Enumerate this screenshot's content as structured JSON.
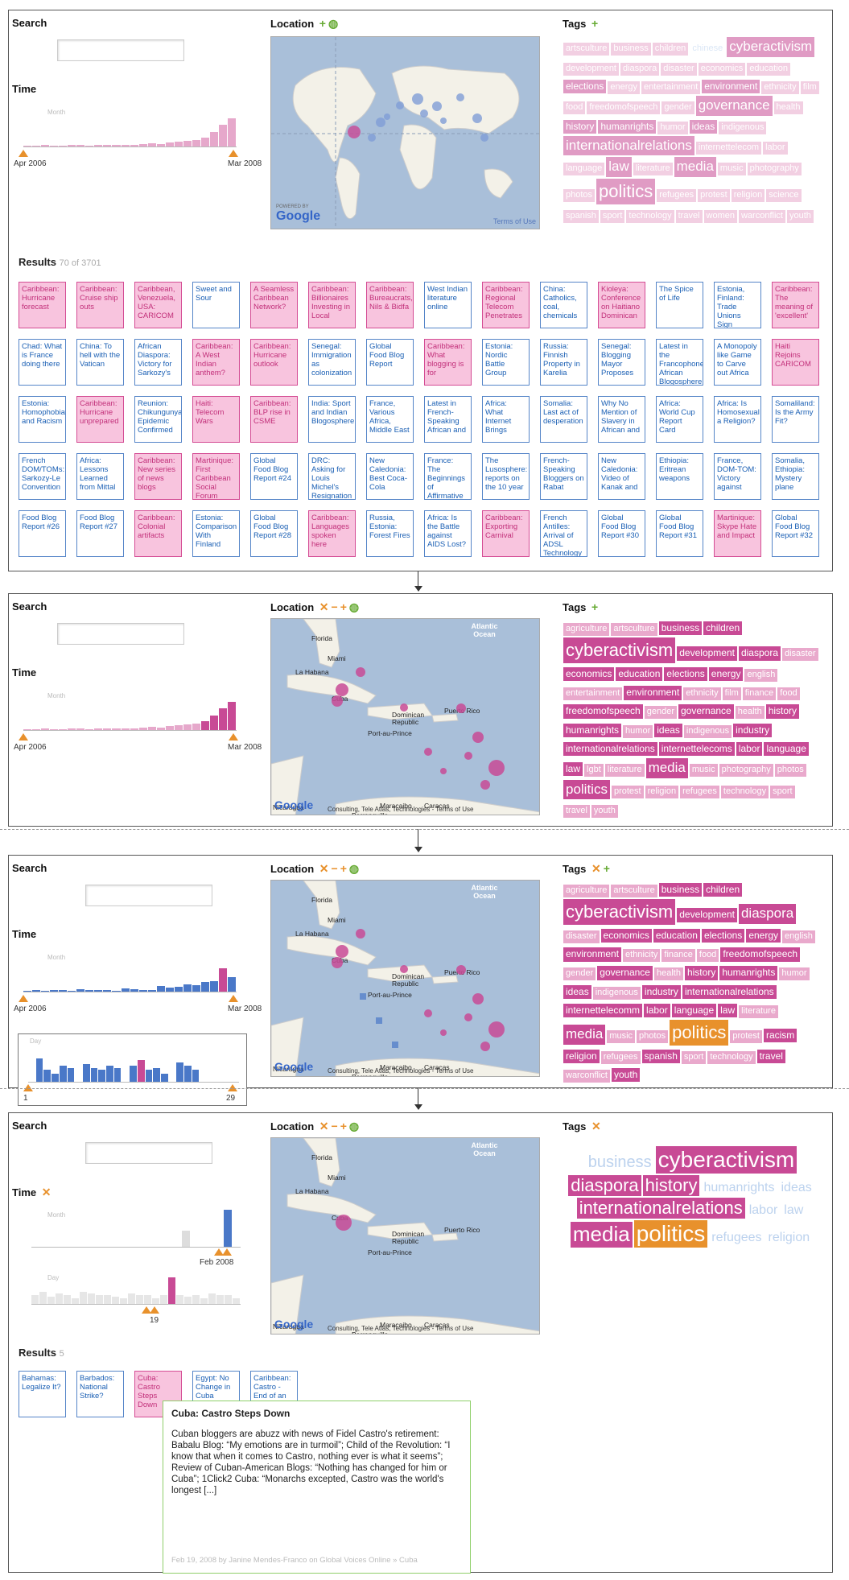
{
  "labels": {
    "search": "Search",
    "time": "Time",
    "location": "Location",
    "tags": "Tags",
    "results": "Results",
    "month": "Month",
    "day": "Day"
  },
  "panel1": {
    "time_start": "Apr 2006",
    "time_end": "Mar 2008",
    "results_count": "70 of 3701",
    "map_powered": "POWERED BY",
    "map_brand": "Google",
    "map_terms": "Terms of Use",
    "tags": [
      {
        "t": "artsculture",
        "s": "l"
      },
      {
        "t": "business",
        "s": "l"
      },
      {
        "t": "children",
        "s": "l"
      },
      {
        "t": "chinese",
        "s": "x"
      },
      {
        "t": "cyberactivism",
        "s": "xl"
      },
      {
        "t": "development",
        "s": "l"
      },
      {
        "t": "diaspora",
        "s": "l"
      },
      {
        "t": "disaster",
        "s": "l"
      },
      {
        "t": "economics",
        "s": "l"
      },
      {
        "t": "education",
        "s": "l"
      },
      {
        "t": "elections",
        "s": "m"
      },
      {
        "t": "energy",
        "s": "l"
      },
      {
        "t": "entertainment",
        "s": "l"
      },
      {
        "t": "environment",
        "s": "m"
      },
      {
        "t": "ethnicity",
        "s": "l"
      },
      {
        "t": "film",
        "s": "l"
      },
      {
        "t": "food",
        "s": "l"
      },
      {
        "t": "freedomofspeech",
        "s": "l"
      },
      {
        "t": "gender",
        "s": "l"
      },
      {
        "t": "governance",
        "s": "xl"
      },
      {
        "t": "health",
        "s": "l"
      },
      {
        "t": "history",
        "s": "m"
      },
      {
        "t": "humanrights",
        "s": "m"
      },
      {
        "t": "humor",
        "s": "l"
      },
      {
        "t": "ideas",
        "s": "m"
      },
      {
        "t": "indigenous",
        "s": "l"
      },
      {
        "t": "internationalrelations",
        "s": "xl"
      },
      {
        "t": "internettelecom",
        "s": "l"
      },
      {
        "t": "labor",
        "s": "l"
      },
      {
        "t": "language",
        "s": "l"
      },
      {
        "t": "law",
        "s": "xl"
      },
      {
        "t": "literature",
        "s": "l"
      },
      {
        "t": "media",
        "s": "xl"
      },
      {
        "t": "music",
        "s": "l"
      },
      {
        "t": "photography",
        "s": "l"
      },
      {
        "t": "photos",
        "s": "l"
      },
      {
        "t": "politics",
        "s": "xxl"
      },
      {
        "t": "refugees",
        "s": "l"
      },
      {
        "t": "protest",
        "s": "l"
      },
      {
        "t": "religion",
        "s": "l"
      },
      {
        "t": "science",
        "s": "l"
      },
      {
        "t": "spanish",
        "s": "l"
      },
      {
        "t": "sport",
        "s": "l"
      },
      {
        "t": "technology",
        "s": "l"
      },
      {
        "t": "travel",
        "s": "l"
      },
      {
        "t": "women",
        "s": "l"
      },
      {
        "t": "warconflict",
        "s": "l"
      },
      {
        "t": "youth",
        "s": "l"
      }
    ],
    "results": [
      {
        "t": "Caribbean: Hurricane forecast",
        "p": true
      },
      {
        "t": "Caribbean: Cruise ship outs",
        "p": true
      },
      {
        "t": "Caribbean, Venezuela, USA: CARICOM",
        "p": true
      },
      {
        "t": "Sweet and Sour",
        "p": false
      },
      {
        "t": "A Seamless Caribbean Network?",
        "p": true
      },
      {
        "t": "Caribbean: Billionaires Investing in Local",
        "p": true
      },
      {
        "t": "Caribbean: Bureaucrats, Nils & Bidfa",
        "p": true
      },
      {
        "t": "West Indian literature online",
        "p": false
      },
      {
        "t": "Caribbean: Regional Telecom Penetrates",
        "p": true
      },
      {
        "t": "China: Catholics, coal, chemicals",
        "p": false
      },
      {
        "t": "Kioleya: Conference on Haitiano Dominican",
        "p": true
      },
      {
        "t": "The Spice of Life",
        "p": false
      },
      {
        "t": "Estonia, Finland: Trade Unions Sign",
        "p": false
      },
      {
        "t": "Caribbean: The meaning of 'excellent'",
        "p": true
      },
      {
        "t": "Chad: What is France doing there",
        "p": false
      },
      {
        "t": "China: To hell with the Vatican",
        "p": false
      },
      {
        "t": "African Diaspora: Victory for Sarkozy's",
        "p": false
      },
      {
        "t": "Caribbean: A West Indian anthem?",
        "p": true
      },
      {
        "t": "Caribbean: Hurricane outlook",
        "p": true
      },
      {
        "t": "Senegal: Immigration as colonization",
        "p": false
      },
      {
        "t": "Global Food Blog Report",
        "p": false
      },
      {
        "t": "Caribbean: What blogging is for",
        "p": true
      },
      {
        "t": "Estonia: Nordic Battle Group",
        "p": false
      },
      {
        "t": "Russia: Finnish Property in Karelia",
        "p": false
      },
      {
        "t": "Senegal: Blogging Mayor Proposes",
        "p": false
      },
      {
        "t": "Latest in the Francophone African Blogosphere",
        "p": false
      },
      {
        "t": "A Monopoly like Game to Carve out Africa",
        "p": false
      },
      {
        "t": "Haiti Rejoins CARICOM",
        "p": true
      },
      {
        "t": "Estonia: Homophobia and Racism",
        "p": false
      },
      {
        "t": "Caribbean: Hurricane unprepared",
        "p": true
      },
      {
        "t": "Reunion: Chikungunya Epidemic Confirmed",
        "p": false
      },
      {
        "t": "Haiti: Telecom Wars",
        "p": true
      },
      {
        "t": "Caribbean: BLP rise in CSME",
        "p": true
      },
      {
        "t": "India: Sport and Indian Blogosphere",
        "p": false
      },
      {
        "t": "France, Various Africa, Middle East",
        "p": false
      },
      {
        "t": "Latest in French-Speaking African and",
        "p": false
      },
      {
        "t": "Africa: What Internet Brings",
        "p": false
      },
      {
        "t": "Somalia: Last act of desperation",
        "p": false
      },
      {
        "t": "Why No Mention of Slavery in African and",
        "p": false
      },
      {
        "t": "Africa: World Cup Report Card",
        "p": false
      },
      {
        "t": "Africa: Is Homosexual a Religion?",
        "p": false
      },
      {
        "t": "Somaliland: Is the Army Fit?",
        "p": false
      },
      {
        "t": "French DOM/TOMs: Sarkozy-Le Convention",
        "p": false
      },
      {
        "t": "Africa: Lessons Learned from Mittal",
        "p": false
      },
      {
        "t": "Caribbean: New series of news blogs",
        "p": true
      },
      {
        "t": "Martinique: First Caribbean Social Forum",
        "p": true
      },
      {
        "t": "Global Food Blog Report #24",
        "p": false
      },
      {
        "t": "DRC: Asking for Louis Michel's Resignation",
        "p": false
      },
      {
        "t": "New Caledonia: Best Coca-Cola",
        "p": false
      },
      {
        "t": "France: The Beginnings of Affirmative Action",
        "p": false
      },
      {
        "t": "The Lusosphere: reports on the 10 year",
        "p": false
      },
      {
        "t": "French-Speaking Bloggers on Rabat",
        "p": false
      },
      {
        "t": "New Caledonia: Video of Kanak and",
        "p": false
      },
      {
        "t": "Ethiopia: Eritrean weapons",
        "p": false
      },
      {
        "t": "France, DOM-TOM: Victory against",
        "p": false
      },
      {
        "t": "Somalia, Ethiopia: Mystery plane",
        "p": false
      },
      {
        "t": "Food Blog Report #26",
        "p": false
      },
      {
        "t": "Food Blog Report #27",
        "p": false
      },
      {
        "t": "Caribbean: Colonial artifacts",
        "p": true
      },
      {
        "t": "Estonia: Comparison With Finland",
        "p": false
      },
      {
        "t": "Global Food Blog Report #28",
        "p": false
      },
      {
        "t": "Caribbean: Languages spoken here",
        "p": true
      },
      {
        "t": "Russia, Estonia: Forest Fires",
        "p": false
      },
      {
        "t": "Africa: Is the Battle against AIDS Lost?",
        "p": false
      },
      {
        "t": "Caribbean: Exporting Carnival",
        "p": true
      },
      {
        "t": "French Antilles: Arrival of ADSL Technology",
        "p": false
      },
      {
        "t": "Global Food Blog Report #30",
        "p": false
      },
      {
        "t": "Global Food Blog Report #31",
        "p": false
      },
      {
        "t": "Martinique: Skype Hate and Impact",
        "p": true
      },
      {
        "t": "Global Food Blog Report #32",
        "p": false
      }
    ]
  },
  "caribbean_map": {
    "ocean": "Atlantic Ocean",
    "places": [
      "Florida",
      "Miami",
      "La Habana",
      "Cuba",
      "Dominican Republic",
      "Port-au-Prince",
      "Puerto Rico",
      "Nicaragua",
      "Maracaibo",
      "Caracas",
      "Barranquilla"
    ],
    "credits": "Google",
    "footer": "Consulting, Tele Atlas, Technologies - Terms of Use"
  },
  "panel2": {
    "time_start": "Apr 2006",
    "time_end": "Mar 2008",
    "tags": [
      {
        "t": "agriculture",
        "s": "l"
      },
      {
        "t": "artsculture",
        "s": "l"
      },
      {
        "t": "business",
        "s": "m"
      },
      {
        "t": "children",
        "s": "m"
      },
      {
        "t": "cyberactivism",
        "s": "xxl"
      },
      {
        "t": "development",
        "s": "m"
      },
      {
        "t": "diaspora",
        "s": "m"
      },
      {
        "t": "disaster",
        "s": "l"
      },
      {
        "t": "economics",
        "s": "m"
      },
      {
        "t": "education",
        "s": "m"
      },
      {
        "t": "elections",
        "s": "m"
      },
      {
        "t": "energy",
        "s": "m"
      },
      {
        "t": "english",
        "s": "l"
      },
      {
        "t": "entertainment",
        "s": "l"
      },
      {
        "t": "environment",
        "s": "m"
      },
      {
        "t": "ethnicity",
        "s": "l"
      },
      {
        "t": "film",
        "s": "l"
      },
      {
        "t": "finance",
        "s": "l"
      },
      {
        "t": "food",
        "s": "l"
      },
      {
        "t": "freedomofspeech",
        "s": "m"
      },
      {
        "t": "gender",
        "s": "l"
      },
      {
        "t": "governance",
        "s": "m"
      },
      {
        "t": "health",
        "s": "l"
      },
      {
        "t": "history",
        "s": "m"
      },
      {
        "t": "humanrights",
        "s": "m"
      },
      {
        "t": "humor",
        "s": "l"
      },
      {
        "t": "ideas",
        "s": "m"
      },
      {
        "t": "indigenous",
        "s": "l"
      },
      {
        "t": "industry",
        "s": "m"
      },
      {
        "t": "internationalrelations",
        "s": "m"
      },
      {
        "t": "internettelecoms",
        "s": "m"
      },
      {
        "t": "labor",
        "s": "m"
      },
      {
        "t": "language",
        "s": "m"
      },
      {
        "t": "law",
        "s": "m"
      },
      {
        "t": "lgbt",
        "s": "l"
      },
      {
        "t": "literature",
        "s": "l"
      },
      {
        "t": "media",
        "s": "xl"
      },
      {
        "t": "music",
        "s": "l"
      },
      {
        "t": "photography",
        "s": "l"
      },
      {
        "t": "photos",
        "s": "l"
      },
      {
        "t": "politics",
        "s": "xl"
      },
      {
        "t": "protest",
        "s": "l"
      },
      {
        "t": "religion",
        "s": "l"
      },
      {
        "t": "refugees",
        "s": "l"
      },
      {
        "t": "technology",
        "s": "l"
      },
      {
        "t": "sport",
        "s": "l"
      },
      {
        "t": "travel",
        "s": "l"
      },
      {
        "t": "youth",
        "s": "l"
      }
    ]
  },
  "panel3": {
    "time_start": "Apr 2006",
    "time_end": "Mar 2008",
    "day_start": "1",
    "day_end": "29",
    "tags": [
      {
        "t": "agriculture",
        "s": "l"
      },
      {
        "t": "artsculture",
        "s": "l"
      },
      {
        "t": "business",
        "s": "m"
      },
      {
        "t": "children",
        "s": "m"
      },
      {
        "t": "cyberactivism",
        "s": "xxl"
      },
      {
        "t": "development",
        "s": "m"
      },
      {
        "t": "diaspora",
        "s": "xl"
      },
      {
        "t": "disaster",
        "s": "l"
      },
      {
        "t": "economics",
        "s": "m"
      },
      {
        "t": "education",
        "s": "m"
      },
      {
        "t": "elections",
        "s": "m"
      },
      {
        "t": "energy",
        "s": "m"
      },
      {
        "t": "english",
        "s": "l"
      },
      {
        "t": "environment",
        "s": "m"
      },
      {
        "t": "ethnicity",
        "s": "l"
      },
      {
        "t": "finance",
        "s": "l"
      },
      {
        "t": "food",
        "s": "l"
      },
      {
        "t": "freedomofspeech",
        "s": "m"
      },
      {
        "t": "gender",
        "s": "l"
      },
      {
        "t": "governance",
        "s": "m"
      },
      {
        "t": "health",
        "s": "l"
      },
      {
        "t": "history",
        "s": "m"
      },
      {
        "t": "humanrights",
        "s": "m"
      },
      {
        "t": "humor",
        "s": "l"
      },
      {
        "t": "ideas",
        "s": "m"
      },
      {
        "t": "indigenous",
        "s": "l"
      },
      {
        "t": "industry",
        "s": "m"
      },
      {
        "t": "internationalrelations",
        "s": "m"
      },
      {
        "t": "internettelecomm",
        "s": "m"
      },
      {
        "t": "labor",
        "s": "m"
      },
      {
        "t": "language",
        "s": "m"
      },
      {
        "t": "law",
        "s": "m"
      },
      {
        "t": "literature",
        "s": "l"
      },
      {
        "t": "media",
        "s": "xl"
      },
      {
        "t": "music",
        "s": "l"
      },
      {
        "t": "photos",
        "s": "l"
      },
      {
        "t": "politics",
        "s": "sel"
      },
      {
        "t": "protest",
        "s": "l"
      },
      {
        "t": "racism",
        "s": "m"
      },
      {
        "t": "religion",
        "s": "m"
      },
      {
        "t": "refugees",
        "s": "l"
      },
      {
        "t": "spanish",
        "s": "m"
      },
      {
        "t": "sport",
        "s": "l"
      },
      {
        "t": "technology",
        "s": "l"
      },
      {
        "t": "travel",
        "s": "m"
      },
      {
        "t": "warconflict",
        "s": "l"
      },
      {
        "t": "youth",
        "s": "m"
      }
    ]
  },
  "panel4": {
    "month_end": "Feb 2008",
    "day_sel": "19",
    "results_count": "5",
    "tags": [
      {
        "t": "business",
        "c": "faint",
        "z": 20
      },
      {
        "t": "cyberactivism",
        "c": "pink",
        "z": 28
      },
      {
        "t": "diaspora",
        "c": "pink",
        "z": 22
      },
      {
        "t": "history",
        "c": "pink",
        "z": 22
      },
      {
        "t": "humanrights",
        "c": "faint",
        "z": 16
      },
      {
        "t": "ideas",
        "c": "faint",
        "z": 16
      },
      {
        "t": "internationalrelations",
        "c": "pink",
        "z": 22
      },
      {
        "t": "labor",
        "c": "faint",
        "z": 16
      },
      {
        "t": "law",
        "c": "faint",
        "z": 16
      },
      {
        "t": "media",
        "c": "pink",
        "z": 26
      },
      {
        "t": "politics",
        "c": "orange",
        "z": 28
      },
      {
        "t": "refugees",
        "c": "faint",
        "z": 16
      },
      {
        "t": "religion",
        "c": "faint",
        "z": 16
      }
    ],
    "results": [
      {
        "t": "Bahamas: Legalize It?",
        "p": false
      },
      {
        "t": "Barbados: National Strike?",
        "p": false
      },
      {
        "t": "Cuba: Castro Steps Down",
        "p": true
      },
      {
        "t": "Egypt: No Change in Cuba",
        "p": false
      },
      {
        "t": "Caribbean: Castro - End of an Era",
        "p": false
      }
    ],
    "popup_title": "Cuba: Castro Steps Down",
    "popup_body": "Cuban bloggers are abuzz with news of Fidel Castro's retirement: Babalu Blog: “My emotions are in turmoil”; Child of the Revolution: “I know that when it comes to Castro, nothing ever is what it seems”; Review of Cuban-American Blogs: “Nothing has changed for him or Cuba”; 1Click2 Cuba: “Monarchs excepted, Castro was the world's longest [...]",
    "popup_meta": "Feb 19, 2008 by Janine Mendes-Franco on Global Voices Online » Cuba"
  },
  "colors": {
    "pink": "#c84a95",
    "orange": "#e8912c",
    "blue": "#4a78c8",
    "green": "#66aa33"
  }
}
